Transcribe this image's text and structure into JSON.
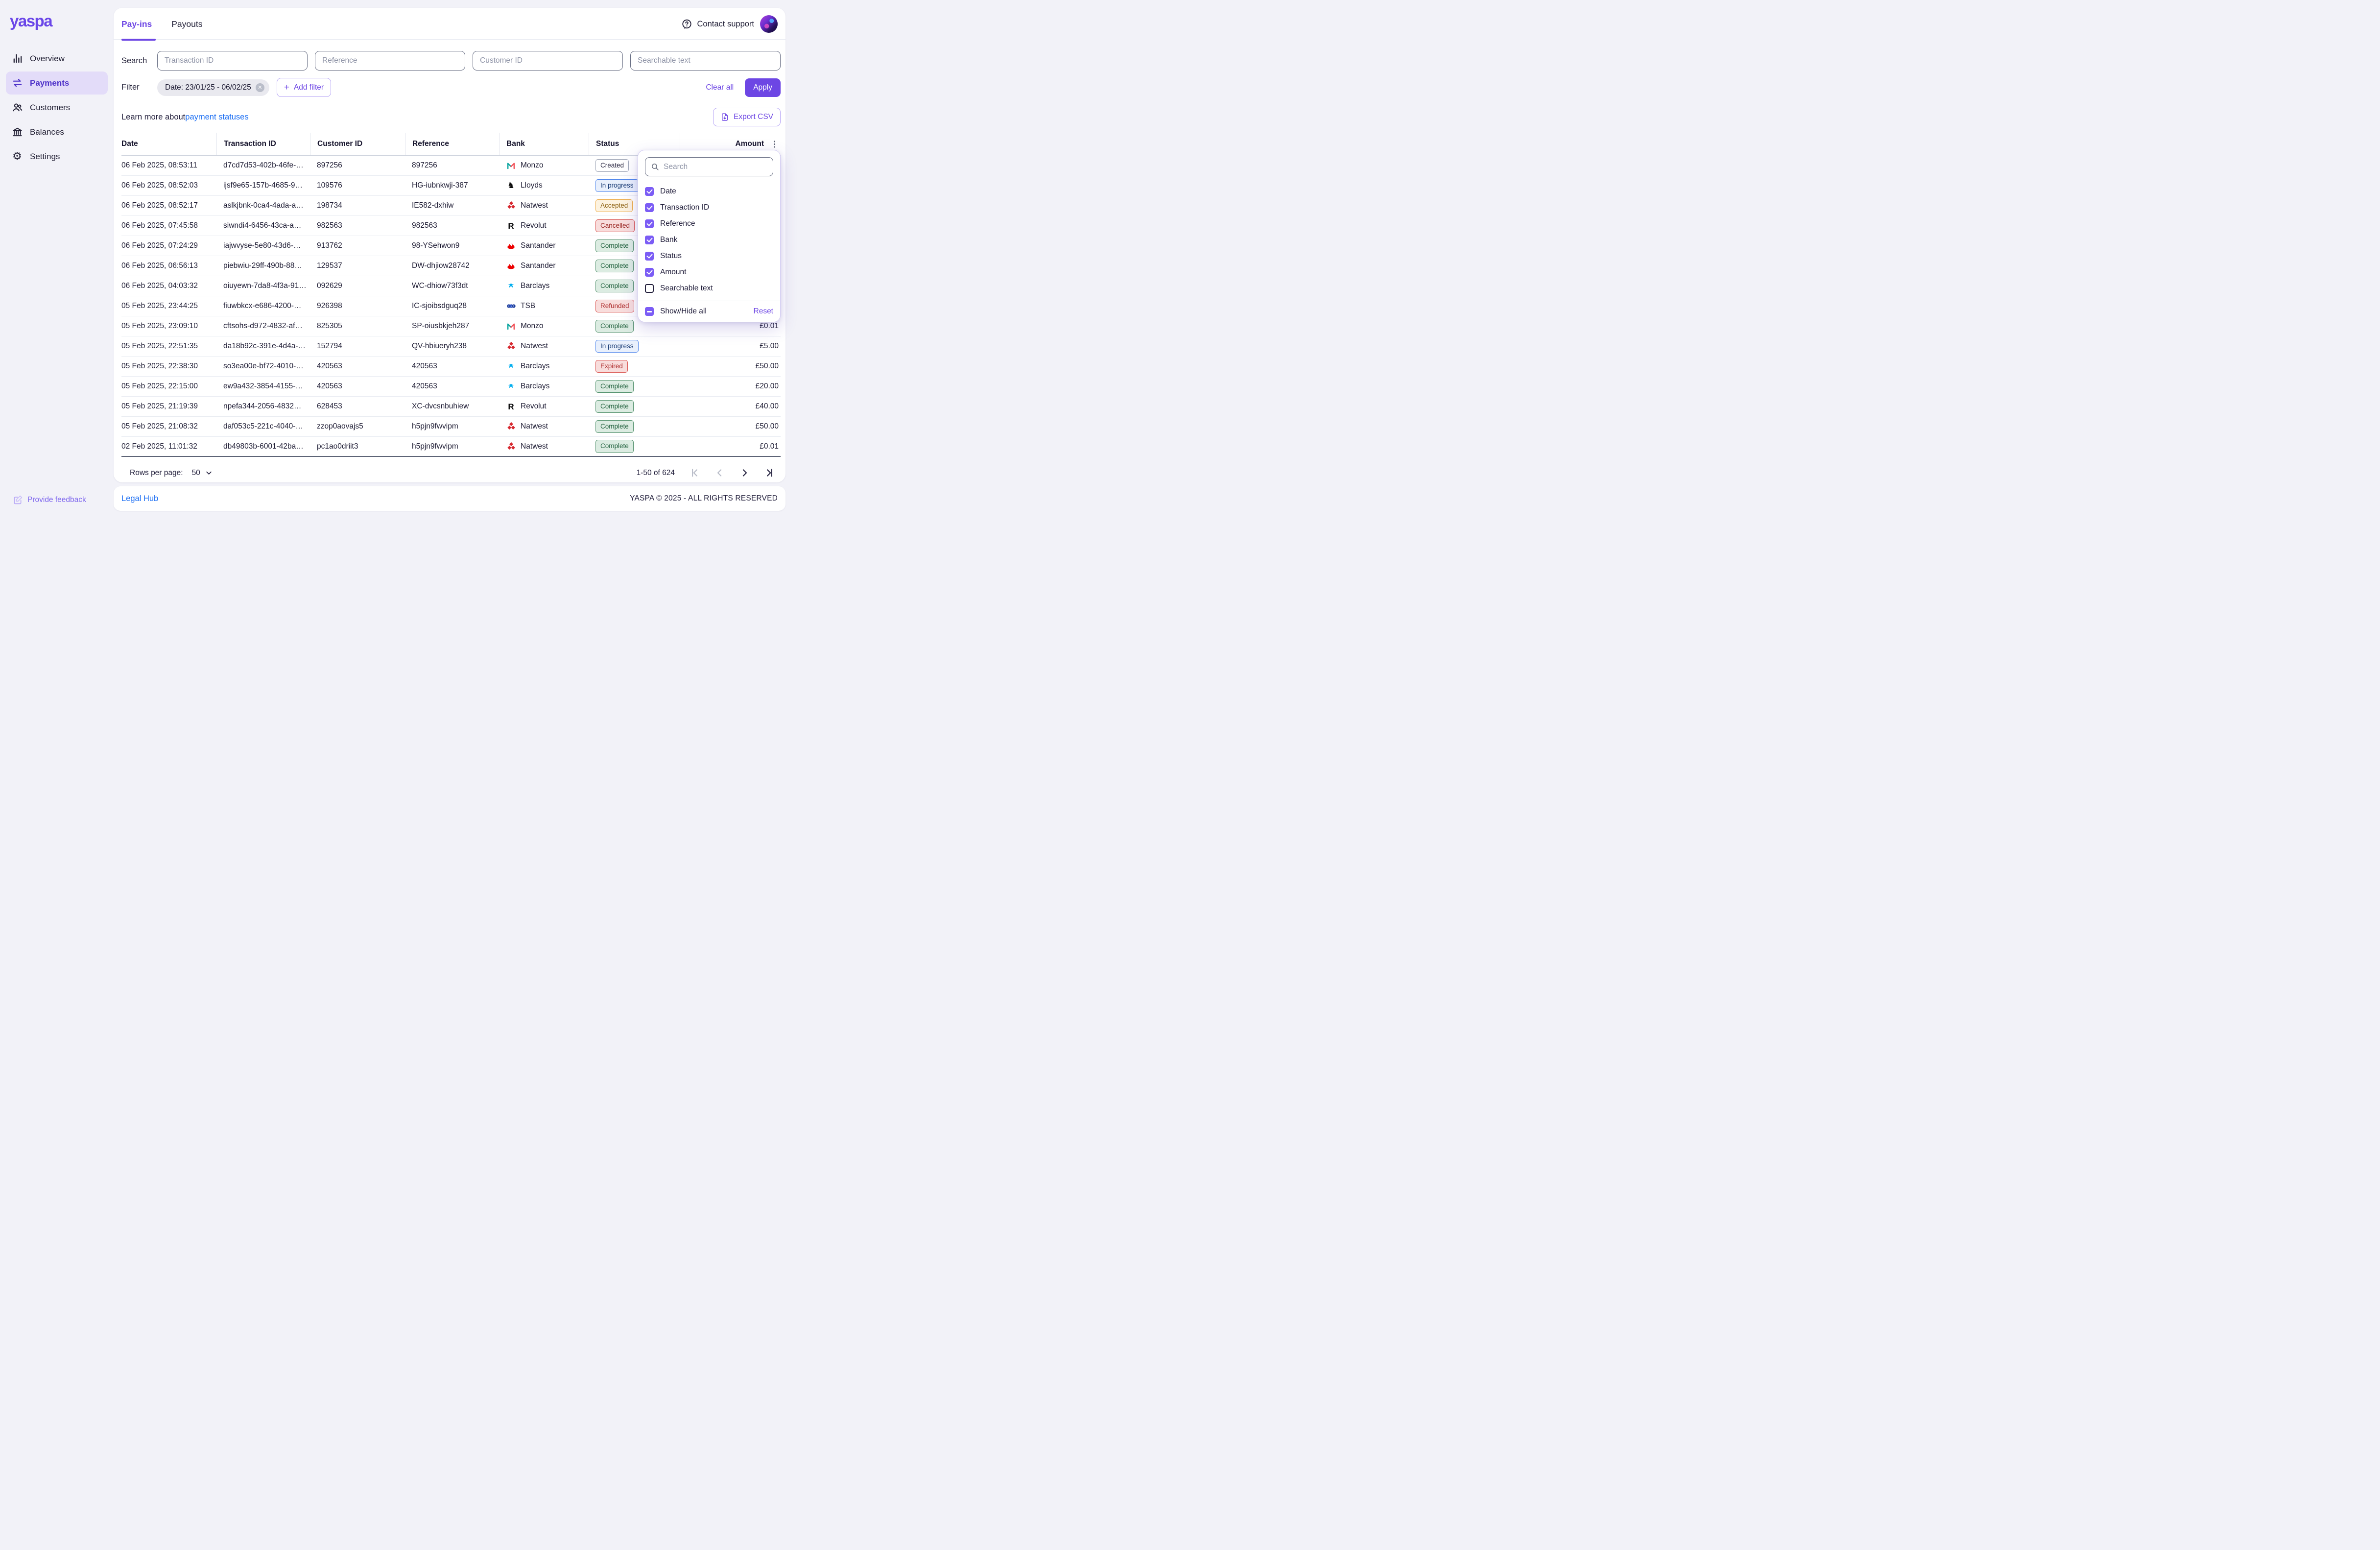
{
  "brand": {
    "logo": "yaspa",
    "accent": "#6d46e4",
    "link_blue": "#1b6ef3"
  },
  "sidebar": {
    "items": [
      {
        "label": "Overview",
        "icon": "bar-chart-icon",
        "active": false
      },
      {
        "label": "Payments",
        "icon": "transfer-arrows-icon",
        "active": true
      },
      {
        "label": "Customers",
        "icon": "people-icon",
        "active": false
      },
      {
        "label": "Balances",
        "icon": "bank-icon",
        "active": false
      },
      {
        "label": "Settings",
        "icon": "gear-icon",
        "active": false
      }
    ],
    "feedback_label": "Provide feedback"
  },
  "header": {
    "tabs": [
      {
        "label": "Pay-ins",
        "active": true
      },
      {
        "label": "Payouts",
        "active": false
      }
    ],
    "contact_support": "Contact support"
  },
  "search": {
    "label": "Search",
    "fields": [
      {
        "placeholder": "Transaction ID"
      },
      {
        "placeholder": "Reference"
      },
      {
        "placeholder": "Customer ID"
      },
      {
        "placeholder": "Searchable text"
      }
    ]
  },
  "filter": {
    "label": "Filter",
    "chip": "Date: 23/01/25 - 06/02/25",
    "add_filter": "Add filter",
    "clear_all": "Clear all",
    "apply": "Apply"
  },
  "info": {
    "learn_more": "Learn more about ",
    "link": "payment statuses",
    "export_csv": "Export CSV"
  },
  "table": {
    "columns": [
      "Date",
      "Transaction ID",
      "Customer ID",
      "Reference",
      "Bank",
      "Status",
      "Amount"
    ],
    "rows": [
      {
        "date": "06 Feb 2025, 08:53:11",
        "txid": "d7cd7d53-402b-46fe-…",
        "customer": "897256",
        "reference": "897256",
        "bank": "Monzo",
        "status": "Created",
        "amount": ""
      },
      {
        "date": "06 Feb 2025, 08:52:03",
        "txid": "ijsf9e65-157b-4685-9…",
        "customer": "109576",
        "reference": "HG-iubnkwji-387",
        "bank": "Lloyds",
        "status": "In progress",
        "amount": ""
      },
      {
        "date": "06 Feb 2025, 08:52:17",
        "txid": "aslkjbnk-0ca4-4ada-a…",
        "customer": "198734",
        "reference": "IE582-dxhiw",
        "bank": "Natwest",
        "status": "Accepted",
        "amount": ""
      },
      {
        "date": "06 Feb 2025, 07:45:58",
        "txid": "siwndi4-6456-43ca-a…",
        "customer": "982563",
        "reference": "982563",
        "bank": "Revolut",
        "status": "Cancelled",
        "amount": ""
      },
      {
        "date": "06 Feb 2025, 07:24:29",
        "txid": "iajwvyse-5e80-43d6-…",
        "customer": "913762",
        "reference": "98-YSehwon9",
        "bank": "Santander",
        "status": "Complete",
        "amount": ""
      },
      {
        "date": "06 Feb 2025, 06:56:13",
        "txid": "piebwiu-29ff-490b-88…",
        "customer": "129537",
        "reference": "DW-dhjiow28742",
        "bank": "Santander",
        "status": "Complete",
        "amount": ""
      },
      {
        "date": "06 Feb 2025, 04:03:32",
        "txid": "oiuyewn-7da8-4f3a-91…",
        "customer": "092629",
        "reference": "WC-dhiow73f3dt",
        "bank": "Barclays",
        "status": "Complete",
        "amount": ""
      },
      {
        "date": "05 Feb 2025, 23:44:25",
        "txid": "fiuwbkcx-e686-4200-…",
        "customer": "926398",
        "reference": "IC-sjoibsdguq28",
        "bank": "TSB",
        "status": "Refunded",
        "amount": ""
      },
      {
        "date": "05 Feb 2025, 23:09:10",
        "txid": "cftsohs-d972-4832-af…",
        "customer": "825305",
        "reference": "SP-oiusbkjeh287",
        "bank": "Monzo",
        "status": "Complete",
        "amount": "£0.01"
      },
      {
        "date": "05 Feb 2025, 22:51:35",
        "txid": "da18b92c-391e-4d4a-…",
        "customer": "152794",
        "reference": "QV-hbiueryh238",
        "bank": "Natwest",
        "status": "In progress",
        "amount": "£5.00"
      },
      {
        "date": "05 Feb 2025, 22:38:30",
        "txid": "so3ea00e-bf72-4010-…",
        "customer": "420563",
        "reference": "420563",
        "bank": "Barclays",
        "status": "Expired",
        "amount": "£50.00"
      },
      {
        "date": "05 Feb 2025, 22:15:00",
        "txid": "ew9a432-3854-4155-…",
        "customer": "420563",
        "reference": "420563",
        "bank": "Barclays",
        "status": "Complete",
        "amount": "£20.00"
      },
      {
        "date": "05 Feb 2025, 21:19:39",
        "txid": "npefa344-2056-4832…",
        "customer": "628453",
        "reference": "XC-dvcsnbuhiew",
        "bank": "Revolut",
        "status": "Complete",
        "amount": "£40.00"
      },
      {
        "date": "05 Feb 2025, 21:08:32",
        "txid": "daf053c5-221c-4040-…",
        "customer": "zzop0aovajs5",
        "reference": "h5pjn9fwvipm",
        "bank": "Natwest",
        "status": "Complete",
        "amount": "£50.00"
      },
      {
        "date": "02 Feb 2025, 11:01:32",
        "txid": "db49803b-6001-42ba…",
        "customer": "pc1ao0driit3",
        "reference": "h5pjn9fwvipm",
        "bank": "Natwest",
        "status": "Complete",
        "amount": "£0.01"
      }
    ]
  },
  "column_menu": {
    "search_placeholder": "Search",
    "options": [
      {
        "label": "Date",
        "checked": true
      },
      {
        "label": "Transaction ID",
        "checked": true
      },
      {
        "label": "Reference",
        "checked": true
      },
      {
        "label": "Bank",
        "checked": true
      },
      {
        "label": "Status",
        "checked": true
      },
      {
        "label": "Amount",
        "checked": true
      },
      {
        "label": "Searchable text",
        "checked": false
      }
    ],
    "show_hide_label": "Show/Hide all",
    "reset_label": "Reset"
  },
  "pagination": {
    "rows_per_page_label": "Rows per page:",
    "rows_per_page_value": "50",
    "range": "1-50 of 624"
  },
  "footer": {
    "legal": "Legal Hub",
    "copyright": "YASPA © 2025 - ALL RIGHTS RESERVED"
  },
  "status_colors": {
    "Created": {
      "bg": "#ffffff",
      "border": "#9aa1b2",
      "text": "#23203b"
    },
    "In progress": {
      "bg": "#e9f0fc",
      "border": "#4f86ec",
      "text": "#1c3e77"
    },
    "Accepted": {
      "bg": "#fdf3e0",
      "border": "#edaa43",
      "text": "#8a5d0b"
    },
    "Cancelled": {
      "bg": "#f8dddc",
      "border": "#d9534f",
      "text": "#99231f"
    },
    "Complete": {
      "bg": "#dcece2",
      "border": "#55936f",
      "text": "#1e5f3b"
    },
    "Refunded": {
      "bg": "#f8dddc",
      "border": "#d9534f",
      "text": "#ad2a2a"
    },
    "Expired": {
      "bg": "#f8dddc",
      "border": "#d9534f",
      "text": "#ad2a2a"
    }
  }
}
